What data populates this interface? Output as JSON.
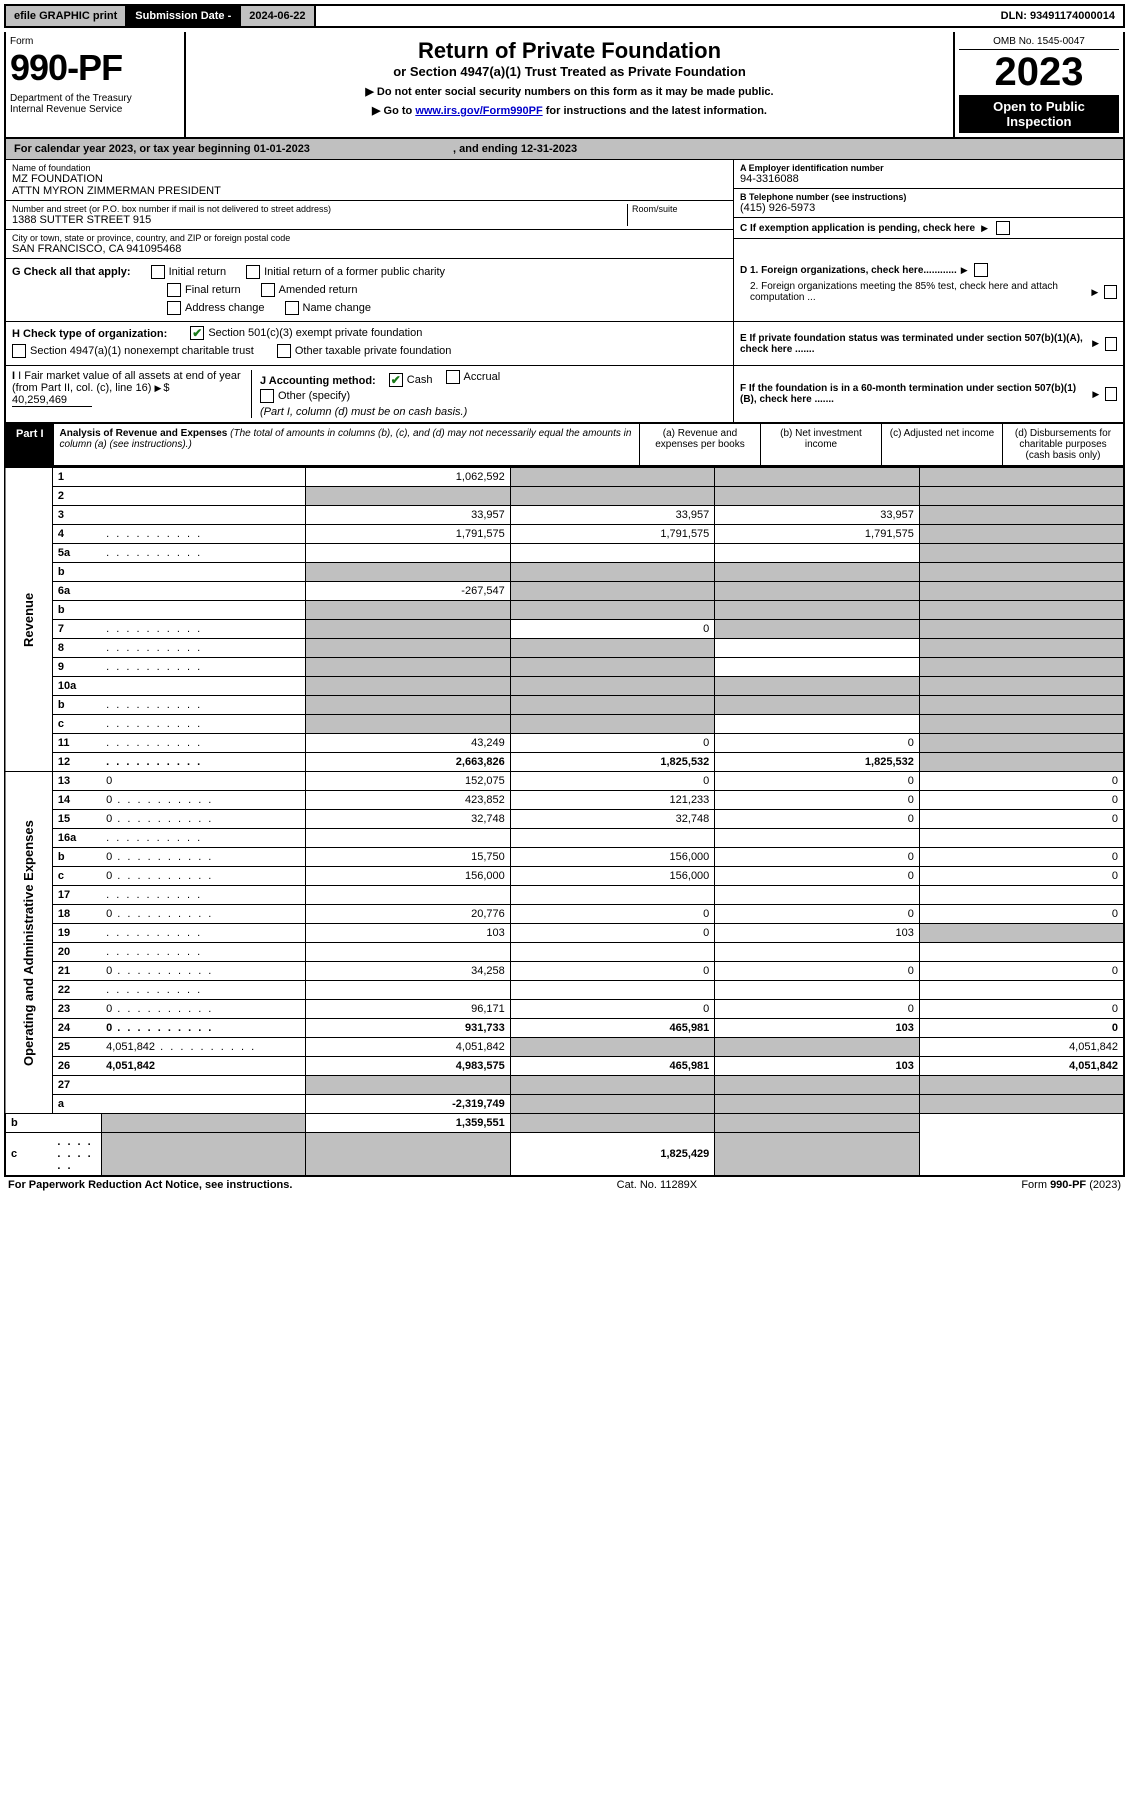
{
  "topbar": {
    "efile": "efile GRAPHIC print",
    "sub_label": "Submission Date -",
    "sub_date": "2024-06-22",
    "dln": "DLN: 93491174000014"
  },
  "header": {
    "form_label": "Form",
    "form_num": "990-PF",
    "dept": "Department of the Treasury\nInternal Revenue Service",
    "title": "Return of Private Foundation",
    "subtitle": "or Section 4947(a)(1) Trust Treated as Private Foundation",
    "inst1": "▶ Do not enter social security numbers on this form as it may be made public.",
    "inst2_pre": "▶ Go to ",
    "inst2_link": "www.irs.gov/Form990PF",
    "inst2_post": " for instructions and the latest information.",
    "omb": "OMB No. 1545-0047",
    "year": "2023",
    "open": "Open to Public Inspection"
  },
  "cal": {
    "text_pre": "For calendar year 2023, or tax year beginning ",
    "begin": "01-01-2023",
    "mid": " , and ending ",
    "end": "12-31-2023"
  },
  "info": {
    "name_label": "Name of foundation",
    "name1": "MZ FOUNDATION",
    "name2": "ATTN MYRON ZIMMERMAN PRESIDENT",
    "addr_label": "Number and street (or P.O. box number if mail is not delivered to street address)",
    "addr": "1388 SUTTER STREET 915",
    "room_label": "Room/suite",
    "city_label": "City or town, state or province, country, and ZIP or foreign postal code",
    "city": "SAN FRANCISCO, CA  941095468",
    "a_label": "A Employer identification number",
    "a_val": "94-3316088",
    "b_label": "B Telephone number (see instructions)",
    "b_val": "(415) 926-5973",
    "c_label": "C If exemption application is pending, check here",
    "d1": "D 1. Foreign organizations, check here............",
    "d2": "2. Foreign organizations meeting the 85% test, check here and attach computation ...",
    "e_label": "E  If private foundation status was terminated under section 507(b)(1)(A), check here .......",
    "f_label": "F  If the foundation is in a 60-month termination under section 507(b)(1)(B), check here ......."
  },
  "g": {
    "label": "G Check all that apply:",
    "opts": [
      "Initial return",
      "Final return",
      "Address change",
      "Initial return of a former public charity",
      "Amended return",
      "Name change"
    ]
  },
  "h": {
    "label": "H Check type of organization:",
    "opt1": "Section 501(c)(3) exempt private foundation",
    "opt2": "Section 4947(a)(1) nonexempt charitable trust",
    "opt3": "Other taxable private foundation"
  },
  "i": {
    "label": "I Fair market value of all assets at end of year (from Part II, col. (c), line 16)",
    "val": "40,259,469"
  },
  "j": {
    "label": "J Accounting method:",
    "cash": "Cash",
    "accrual": "Accrual",
    "other": "Other (specify)",
    "note": "(Part I, column (d) must be on cash basis.)"
  },
  "part1": {
    "label": "Part I",
    "title": "Analysis of Revenue and Expenses",
    "note": "(The total of amounts in columns (b), (c), and (d) may not necessarily equal the amounts in column (a) (see instructions).)",
    "cols": {
      "a": "(a) Revenue and expenses per books",
      "b": "(b) Net investment income",
      "c": "(c) Adjusted net income",
      "d": "(d) Disbursements for charitable purposes (cash basis only)"
    }
  },
  "vlabels": {
    "rev": "Revenue",
    "exp": "Operating and Administrative Expenses"
  },
  "rows": [
    {
      "n": "1",
      "d": "",
      "a": "1,062,592",
      "b": "",
      "c": "",
      "bs": true,
      "cs": true,
      "ds": true
    },
    {
      "n": "2",
      "d": "",
      "a": "",
      "b": "",
      "c": "",
      "as": true,
      "bs": true,
      "cs": true,
      "ds": true
    },
    {
      "n": "3",
      "d": "",
      "a": "33,957",
      "b": "33,957",
      "c": "33,957",
      "ds": true
    },
    {
      "n": "4",
      "d": "",
      "a": "1,791,575",
      "b": "1,791,575",
      "c": "1,791,575",
      "ds": true,
      "dot": true
    },
    {
      "n": "5a",
      "d": "",
      "a": "",
      "b": "",
      "c": "",
      "ds": true,
      "dot": true
    },
    {
      "n": "b",
      "d": "",
      "a": "",
      "b": "",
      "c": "",
      "as": true,
      "bs": true,
      "cs": true,
      "ds": true
    },
    {
      "n": "6a",
      "d": "",
      "a": "-267,547",
      "b": "",
      "c": "",
      "bs": true,
      "cs": true,
      "ds": true
    },
    {
      "n": "b",
      "d": "",
      "a": "",
      "b": "",
      "c": "",
      "as": true,
      "bs": true,
      "cs": true,
      "ds": true
    },
    {
      "n": "7",
      "d": "",
      "a": "",
      "b": "0",
      "c": "",
      "as": true,
      "cs": true,
      "ds": true,
      "dot": true
    },
    {
      "n": "8",
      "d": "",
      "a": "",
      "b": "",
      "c": "",
      "as": true,
      "bs": true,
      "ds": true,
      "dot": true
    },
    {
      "n": "9",
      "d": "",
      "a": "",
      "b": "",
      "c": "",
      "as": true,
      "bs": true,
      "ds": true,
      "dot": true
    },
    {
      "n": "10a",
      "d": "",
      "a": "",
      "b": "",
      "c": "",
      "as": true,
      "bs": true,
      "cs": true,
      "ds": true
    },
    {
      "n": "b",
      "d": "",
      "a": "",
      "b": "",
      "c": "",
      "as": true,
      "bs": true,
      "cs": true,
      "ds": true,
      "dot": true
    },
    {
      "n": "c",
      "d": "",
      "a": "",
      "b": "",
      "c": "",
      "as": true,
      "bs": true,
      "ds": true,
      "dot": true
    },
    {
      "n": "11",
      "d": "",
      "a": "43,249",
      "b": "0",
      "c": "0",
      "ds": true,
      "dot": true
    },
    {
      "n": "12",
      "d": "",
      "a": "2,663,826",
      "b": "1,825,532",
      "c": "1,825,532",
      "ds": true,
      "bold": true,
      "dot": true
    },
    {
      "n": "13",
      "d": "0",
      "a": "152,075",
      "b": "0",
      "c": "0"
    },
    {
      "n": "14",
      "d": "0",
      "a": "423,852",
      "b": "121,233",
      "c": "0",
      "dot": true
    },
    {
      "n": "15",
      "d": "0",
      "a": "32,748",
      "b": "32,748",
      "c": "0",
      "dot": true
    },
    {
      "n": "16a",
      "d": "",
      "a": "",
      "b": "",
      "c": "",
      "dot": true
    },
    {
      "n": "b",
      "d": "0",
      "a": "15,750",
      "b": "156,000",
      "c": "0",
      "dot": true
    },
    {
      "n": "c",
      "d": "0",
      "a": "156,000",
      "b": "156,000",
      "c": "0",
      "dot": true
    },
    {
      "n": "17",
      "d": "",
      "a": "",
      "b": "",
      "c": "",
      "dot": true
    },
    {
      "n": "18",
      "d": "0",
      "a": "20,776",
      "b": "0",
      "c": "0",
      "dot": true
    },
    {
      "n": "19",
      "d": "",
      "a": "103",
      "b": "0",
      "c": "103",
      "ds": true,
      "dot": true
    },
    {
      "n": "20",
      "d": "",
      "a": "",
      "b": "",
      "c": "",
      "dot": true
    },
    {
      "n": "21",
      "d": "0",
      "a": "34,258",
      "b": "0",
      "c": "0",
      "dot": true
    },
    {
      "n": "22",
      "d": "",
      "a": "",
      "b": "",
      "c": "",
      "dot": true
    },
    {
      "n": "23",
      "d": "0",
      "a": "96,171",
      "b": "0",
      "c": "0",
      "dot": true
    },
    {
      "n": "24",
      "d": "0",
      "a": "931,733",
      "b": "465,981",
      "c": "103",
      "bold": true,
      "dot": true
    },
    {
      "n": "25",
      "d": "4,051,842",
      "a": "4,051,842",
      "b": "",
      "c": "",
      "bs": true,
      "cs": true,
      "dot": true
    },
    {
      "n": "26",
      "d": "4,051,842",
      "a": "4,983,575",
      "b": "465,981",
      "c": "103",
      "bold": true
    },
    {
      "n": "27",
      "d": "",
      "a": "",
      "b": "",
      "c": "",
      "as": true,
      "bs": true,
      "cs": true,
      "ds": true
    },
    {
      "n": "a",
      "d": "",
      "a": "-2,319,749",
      "b": "",
      "c": "",
      "bs": true,
      "cs": true,
      "ds": true,
      "bold": true
    },
    {
      "n": "b",
      "d": "",
      "a": "",
      "b": "1,359,551",
      "c": "",
      "as": true,
      "cs": true,
      "ds": true,
      "bold": true
    },
    {
      "n": "c",
      "d": "",
      "a": "",
      "b": "",
      "c": "1,825,429",
      "as": true,
      "bs": true,
      "ds": true,
      "bold": true,
      "dot": true
    }
  ],
  "footer": {
    "left": "For Paperwork Reduction Act Notice, see instructions.",
    "mid": "Cat. No. 11289X",
    "right": "Form 990-PF (2023)"
  }
}
